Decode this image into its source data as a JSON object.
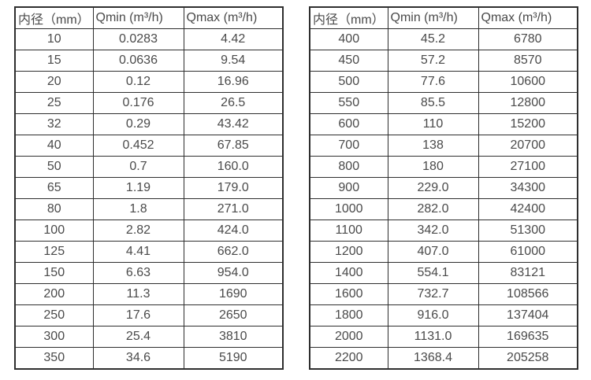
{
  "colors": {
    "background": "#ffffff",
    "text": "#4a4a4a",
    "border": "#2e2e2e"
  },
  "tables": [
    {
      "name": "flow-table-small-diameters",
      "headers": {
        "diameter": "内径（mm）",
        "qmin": "Qmin (m³/h)",
        "qmax": "Qmax (m³/h)"
      },
      "rows": [
        [
          "10",
          "0.0283",
          "4.42"
        ],
        [
          "15",
          "0.0636",
          "9.54"
        ],
        [
          "20",
          "0.12",
          "16.96"
        ],
        [
          "25",
          "0.176",
          "26.5"
        ],
        [
          "32",
          "0.29",
          "43.42"
        ],
        [
          "40",
          "0.452",
          "67.85"
        ],
        [
          "50",
          "0.7",
          "160.0"
        ],
        [
          "65",
          "1.19",
          "179.0"
        ],
        [
          "80",
          "1.8",
          "271.0"
        ],
        [
          "100",
          "2.82",
          "424.0"
        ],
        [
          "125",
          "4.41",
          "662.0"
        ],
        [
          "150",
          "6.63",
          "954.0"
        ],
        [
          "200",
          "11.3",
          "1690"
        ],
        [
          "250",
          "17.6",
          "2650"
        ],
        [
          "300",
          "25.4",
          "3810"
        ],
        [
          "350",
          "34.6",
          "5190"
        ]
      ]
    },
    {
      "name": "flow-table-large-diameters",
      "headers": {
        "diameter": "内径（mm）",
        "qmin": "Qmin (m³/h)",
        "qmax": "Qmax (m³/h)"
      },
      "rows": [
        [
          "400",
          "45.2",
          "6780"
        ],
        [
          "450",
          "57.2",
          "8570"
        ],
        [
          "500",
          "77.6",
          "10600"
        ],
        [
          "550",
          "85.5",
          "12800"
        ],
        [
          "600",
          "110",
          "15200"
        ],
        [
          "700",
          "138",
          "20700"
        ],
        [
          "800",
          "180",
          "27100"
        ],
        [
          "900",
          "229.0",
          "34300"
        ],
        [
          "1000",
          "282.0",
          "42400"
        ],
        [
          "1100",
          "342.0",
          "51300"
        ],
        [
          "1200",
          "407.0",
          "61000"
        ],
        [
          "1400",
          "554.1",
          "83121"
        ],
        [
          "1600",
          "732.7",
          "108566"
        ],
        [
          "1800",
          "916.0",
          "137404"
        ],
        [
          "2000",
          "1131.0",
          "169635"
        ],
        [
          "2200",
          "1368.4",
          "205258"
        ]
      ]
    }
  ]
}
